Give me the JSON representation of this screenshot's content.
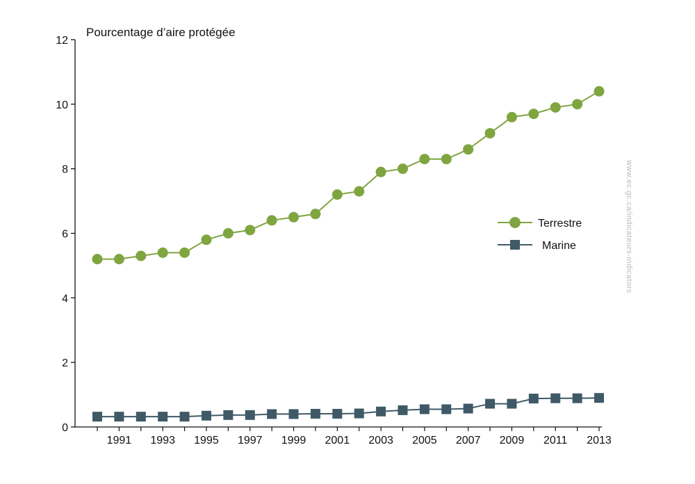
{
  "chart_data": {
    "type": "line",
    "title": "",
    "ylabel": "Pourcentage d’aire protégée",
    "xlabel": "",
    "ylim": [
      0,
      12
    ],
    "yticks": [
      0,
      2,
      4,
      6,
      8,
      10,
      12
    ],
    "xlim": [
      1990,
      2013
    ],
    "xtick_labels": [
      "1991",
      "1993",
      "1995",
      "1997",
      "1999",
      "2001",
      "2003",
      "2005",
      "2007",
      "2009",
      "2011",
      "2013"
    ],
    "grid": false,
    "legend_position": "right",
    "x": [
      1990,
      1991,
      1992,
      1993,
      1994,
      1995,
      1996,
      1997,
      1998,
      1999,
      2000,
      2001,
      2002,
      2003,
      2004,
      2005,
      2006,
      2007,
      2008,
      2009,
      2010,
      2011,
      2012,
      2013
    ],
    "series": [
      {
        "name": "Terrestre",
        "color": "#7fa540",
        "marker": "circle",
        "values": [
          5.2,
          5.2,
          5.3,
          5.4,
          5.4,
          5.8,
          6.0,
          6.1,
          6.4,
          6.5,
          6.6,
          7.2,
          7.3,
          7.9,
          8.0,
          8.3,
          8.3,
          8.6,
          9.1,
          9.6,
          9.7,
          9.9,
          10.0,
          10.4
        ]
      },
      {
        "name": "Marine",
        "color": "#3f5a66",
        "marker": "square",
        "values": [
          0.32,
          0.32,
          0.32,
          0.32,
          0.32,
          0.35,
          0.37,
          0.37,
          0.4,
          0.4,
          0.41,
          0.41,
          0.42,
          0.48,
          0.52,
          0.55,
          0.55,
          0.57,
          0.72,
          0.72,
          0.88,
          0.89,
          0.89,
          0.9
        ]
      }
    ]
  },
  "watermark": "www.ec.gc.ca/indicateurs-indicators"
}
